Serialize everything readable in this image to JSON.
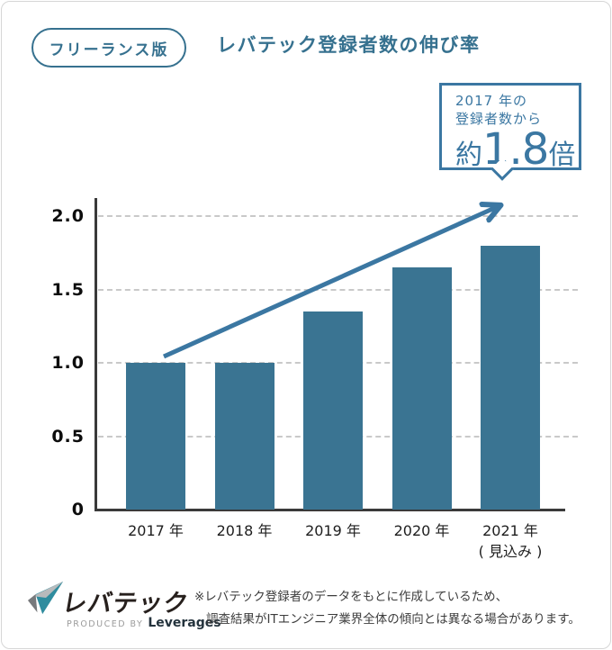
{
  "colors": {
    "accent": "#36718F",
    "callout_blue": "#3B77A2",
    "bar": "#3A7492",
    "axis": "#3A3A3A",
    "grid": "#C9C9C9",
    "logo_teal": "#2F8C9E",
    "logo_gray_dark": "#77797C",
    "logo_gray_light": "#B8BABC"
  },
  "header": {
    "badge_label": "フリーランス版",
    "title": "レバテック登録者数の伸び率"
  },
  "callout": {
    "line1": "2017 年の",
    "line2": "登録者数から",
    "prefix": "約",
    "value": "1.8",
    "suffix": "倍"
  },
  "chart_data": {
    "type": "bar",
    "title": "レバテック登録者数の伸び率",
    "categories": [
      "2017 年",
      "2018 年",
      "2019 年",
      "2020 年",
      "2021 年\n( 見込み )"
    ],
    "values": [
      1.0,
      1.0,
      1.35,
      1.65,
      1.8
    ],
    "xlabel": "",
    "ylabel": "",
    "yticks": [
      "2.0",
      "1.5",
      "1.0",
      "0.5",
      "0"
    ],
    "ylim": [
      0,
      2.15
    ],
    "grid": "horizontal-dashed",
    "legend": "none",
    "bar_color": "#3A7492",
    "annotation": {
      "text": "2017 年の登録者数から 約1.8倍",
      "arrow": "from top of 2017 bar to callout bubble"
    }
  },
  "footer": {
    "logo_text": "レバテック",
    "produced_by": "PRODUCED BY",
    "company": "Leverages",
    "note_line1": "※レバテック登録者のデータをもとに作成しているため、",
    "note_line2": "調査結果がITエンジニア業界全体の傾向とは異なる場合があります。"
  }
}
